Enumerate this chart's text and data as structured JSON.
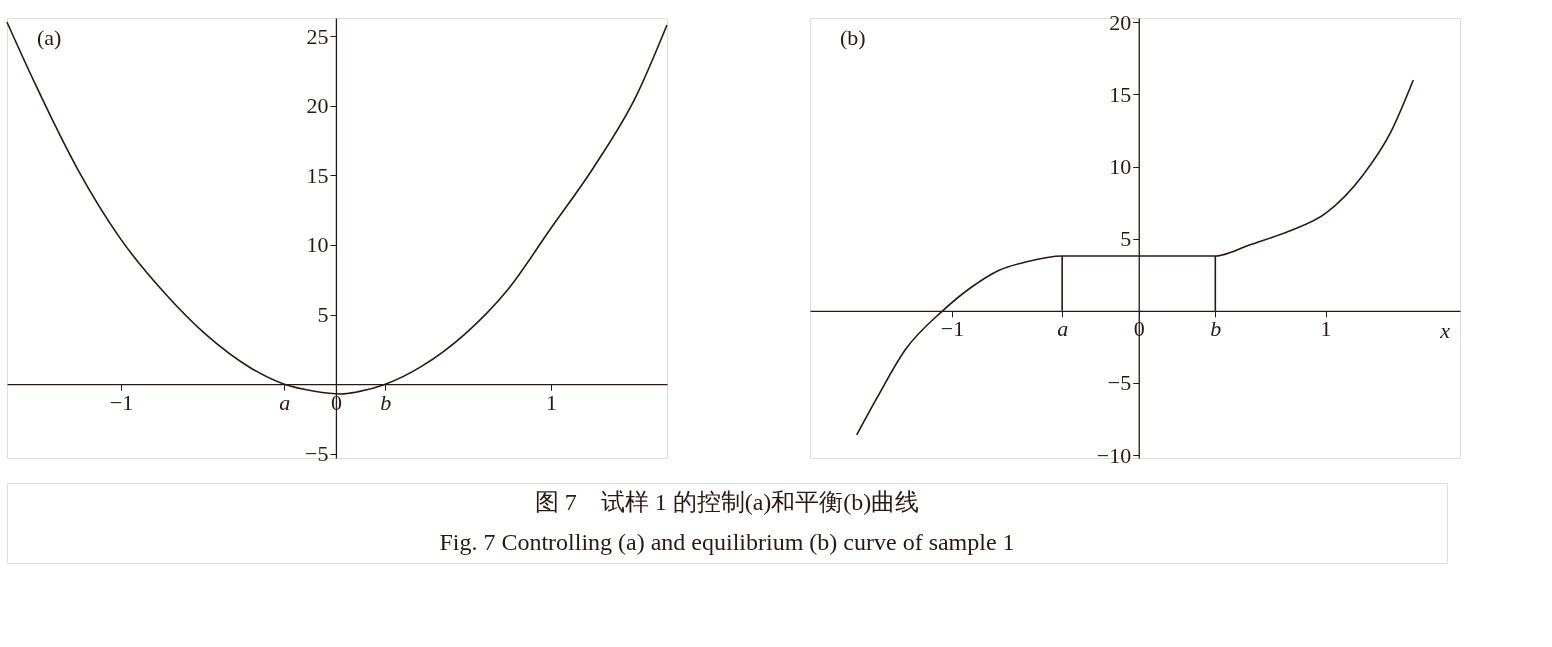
{
  "chart_data": [
    {
      "type": "line",
      "title": "(a)",
      "series": [
        {
          "color": "#2a1812",
          "x": [
            -1.53,
            -1.4,
            -1.2,
            -1.0,
            -0.8,
            -0.6,
            -0.4,
            -0.24,
            -0.1,
            0.02,
            0.1,
            0.23,
            0.4,
            0.6,
            0.8,
            1.0,
            1.2,
            1.4,
            1.54
          ],
          "values": [
            26,
            21.6,
            15.4,
            10.4,
            6.6,
            3.5,
            1.2,
            0,
            -0.5,
            -0.7,
            -0.55,
            0,
            1.3,
            3.6,
            6.8,
            11.2,
            15.6,
            20.8,
            25.8
          ]
        }
      ],
      "xlim": [
        -1.53,
        1.54
      ],
      "ylim": [
        -5.3,
        26.3
      ],
      "xticks": [
        -1,
        {
          "value": -0.24,
          "label": "a"
        },
        0,
        {
          "value": 0.23,
          "label": "b"
        },
        1
      ],
      "yticks": [
        -5,
        5,
        10,
        15,
        20,
        25
      ],
      "grid": false,
      "annotations": [
        "图 7　试样 1 的控制(a)和平衡(b)曲线",
        "Fig. 7  Controlling (a) and equilibrium (b) curve of sample 1"
      ]
    },
    {
      "type": "line",
      "title": "(b)",
      "xlabel": "x",
      "series": [
        {
          "color": "#2a1812",
          "x": [
            -1.51,
            -1.4,
            -1.25,
            -1.05,
            -0.9,
            -0.75,
            -0.6,
            -0.41,
            0.41,
            0.6,
            0.8,
            1.0,
            1.2,
            1.35,
            1.47
          ],
          "values": [
            -8.6,
            -6.0,
            -2.7,
            0,
            1.6,
            2.8,
            3.4,
            3.8,
            3.8,
            4.6,
            5.5,
            6.75,
            9.4,
            12.4,
            16.0
          ]
        },
        {
          "color": "#2a1812",
          "x": [
            -0.41,
            -0.41
          ],
          "values": [
            0,
            3.8
          ]
        },
        {
          "color": "#2a1812",
          "x": [
            0.41,
            0.41
          ],
          "values": [
            0,
            3.8
          ]
        }
      ],
      "xlim": [
        -1.76,
        1.72
      ],
      "ylim": [
        -10.2,
        20.3
      ],
      "xticks": [
        -1,
        {
          "value": -0.41,
          "label": "a"
        },
        0,
        {
          "value": 0.41,
          "label": "b"
        },
        1
      ],
      "yticks": [
        -10,
        -5,
        5,
        10,
        15,
        20
      ],
      "grid": false
    }
  ]
}
